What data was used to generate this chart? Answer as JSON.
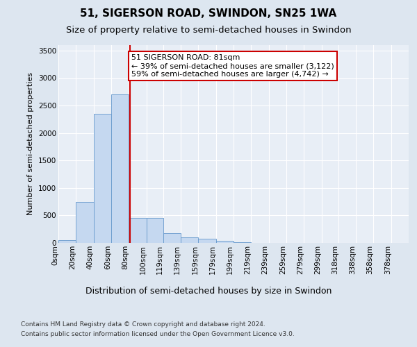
{
  "title1": "51, SIGERSON ROAD, SWINDON, SN25 1WA",
  "title2": "Size of property relative to semi-detached houses in Swindon",
  "xlabel": "Distribution of semi-detached houses by size in Swindon",
  "ylabel": "Number of semi-detached properties",
  "annotation_line1": "51 SIGERSON ROAD: 81sqm",
  "annotation_line2": "← 39% of semi-detached houses are smaller (3,122)",
  "annotation_line3": "59% of semi-detached houses are larger (4,742) →",
  "footer1": "Contains HM Land Registry data © Crown copyright and database right 2024.",
  "footer2": "Contains public sector information licensed under the Open Government Licence v3.0.",
  "property_size": 81,
  "bin_edges": [
    0,
    20,
    40,
    60,
    80,
    100,
    119,
    139,
    159,
    179,
    199,
    219,
    239,
    259,
    279,
    299,
    318,
    338,
    358,
    378,
    398
  ],
  "bar_heights": [
    50,
    750,
    2350,
    2700,
    450,
    450,
    180,
    100,
    75,
    40,
    15,
    5,
    5,
    5,
    5,
    5,
    5,
    5,
    5,
    5
  ],
  "bar_color": "#c5d8f0",
  "bar_edge_color": "#6699cc",
  "vline_color": "#cc0000",
  "vline_x": 81,
  "annotation_box_color": "#ffffff",
  "annotation_box_edge_color": "#cc0000",
  "ylim": [
    0,
    3600
  ],
  "yticks": [
    0,
    500,
    1000,
    1500,
    2000,
    2500,
    3000,
    3500
  ],
  "bg_color": "#dde6f0",
  "plot_bg_color": "#e8eef6",
  "grid_color": "#ffffff",
  "title1_fontsize": 11,
  "title2_fontsize": 9.5,
  "xlabel_fontsize": 9,
  "ylabel_fontsize": 8,
  "tick_fontsize": 7.5,
  "annot_fontsize": 8,
  "footer_fontsize": 6.5
}
